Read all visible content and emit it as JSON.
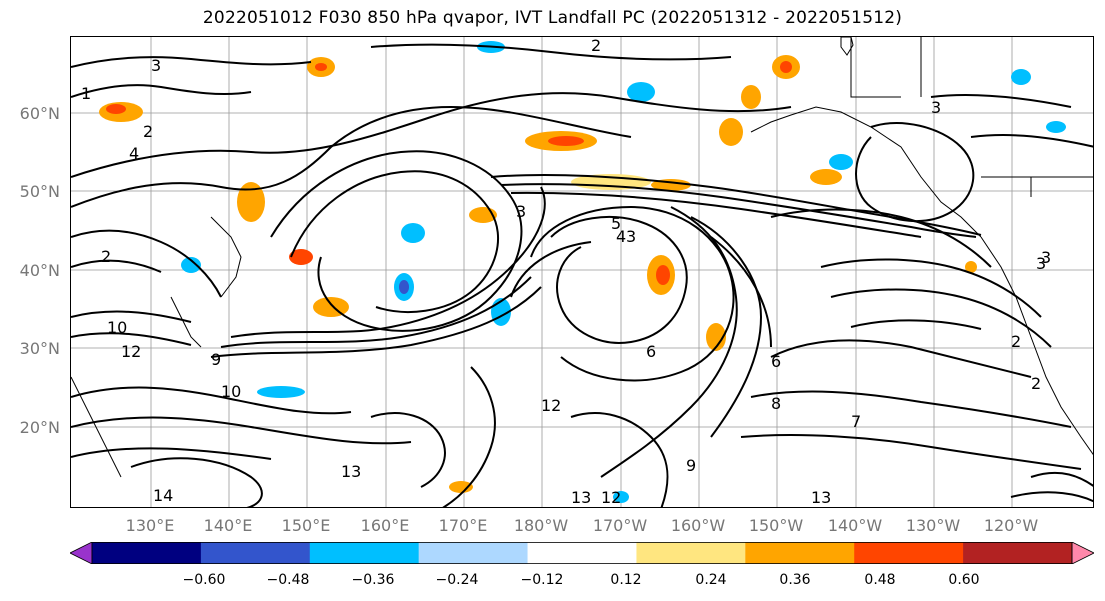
{
  "title": "2022051012 F030 850 hPa qvapor, IVT Landfall PC (2022051312 - 2022051512)",
  "lat_labels": [
    "60°N",
    "50°N",
    "40°N",
    "30°N",
    "20°N"
  ],
  "lon_labels": [
    "130°E",
    "140°E",
    "150°E",
    "160°E",
    "170°E",
    "180°W",
    "170°W",
    "160°W",
    "150°W",
    "140°W",
    "130°W",
    "120°W"
  ],
  "colorbar": {
    "ticks": [
      "−0.60",
      "−0.48",
      "−0.36",
      "−0.24",
      "−0.12",
      "0.12",
      "0.24",
      "0.36",
      "0.48",
      "0.60"
    ],
    "colors": [
      "#9933cc",
      "#000080",
      "#3355cc",
      "#00bfff",
      "#add8ff",
      "#ffffff",
      "#ffe680",
      "#ffa500",
      "#ff4500",
      "#b22222",
      "#ff88aa"
    ]
  },
  "contour_labels": [
    "3",
    "2",
    "2",
    "4",
    "2",
    "1",
    "3",
    "5",
    "3",
    "4",
    "3",
    "2",
    "3",
    "10",
    "12",
    "9",
    "10",
    "12",
    "13",
    "14",
    "13",
    "13",
    "12",
    "6",
    "8",
    "6",
    "2",
    "3",
    "9",
    "7"
  ]
}
